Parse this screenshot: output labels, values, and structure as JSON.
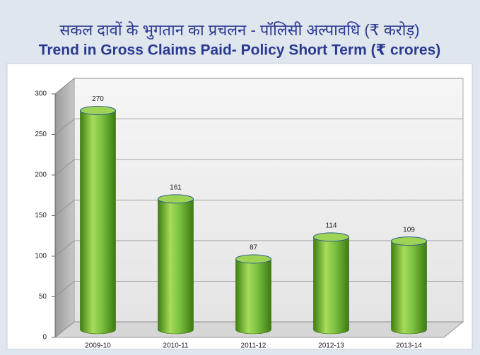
{
  "chart_data": {
    "type": "bar",
    "title": "सकल दावों के भुगतान का प्रचलन - पॉलिसी अल्पावधि (₹ करोड़)",
    "subtitle": "Trend in Gross Claims Paid- Policy Short Term (₹ crores)",
    "categories": [
      "2009-10",
      "2010-11",
      "2011-12",
      "2012-13",
      "2013-14"
    ],
    "values": [
      270,
      161,
      87,
      114,
      109
    ],
    "color": "#7dc242",
    "ylim": [
      0,
      300
    ],
    "yticks": [
      0,
      50,
      100,
      150,
      200,
      250,
      300
    ],
    "grid": true
  }
}
